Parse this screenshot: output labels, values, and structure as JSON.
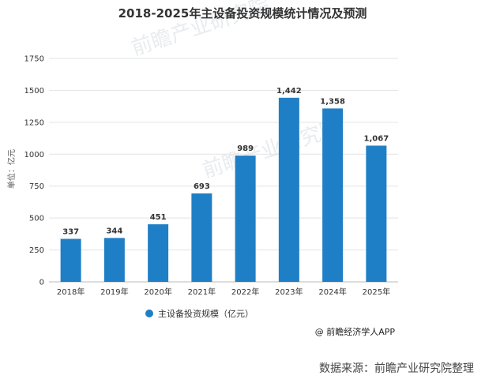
{
  "chart_data": {
    "type": "bar",
    "title": "2018-2025年主设备投资规模统计情况及预测",
    "ylabel": "单位：亿元",
    "xlabel": "",
    "categories": [
      "2018年",
      "2019年",
      "2020年",
      "2021年",
      "2022年",
      "2023年",
      "2024年",
      "2025年"
    ],
    "series": [
      {
        "name": "主设备投资规模（亿元）",
        "values": [
          337,
          344,
          451,
          693,
          989,
          1442,
          1358,
          1067
        ]
      }
    ],
    "data_labels": [
      "337",
      "344",
      "451",
      "693",
      "989",
      "1,442",
      "1,358",
      "1,067"
    ],
    "ylim": [
      0,
      1750
    ],
    "yticks": [
      0,
      250,
      500,
      750,
      1000,
      1250,
      1500,
      1750
    ],
    "grid": true,
    "legend_position": "bottom",
    "color": "#1f7fc6"
  },
  "footer": {
    "credit": "@ 前瞻经济学人APP",
    "source": "数据来源：前瞻产业研究院整理"
  },
  "watermark": {
    "text": "前瞻产业研究院"
  }
}
